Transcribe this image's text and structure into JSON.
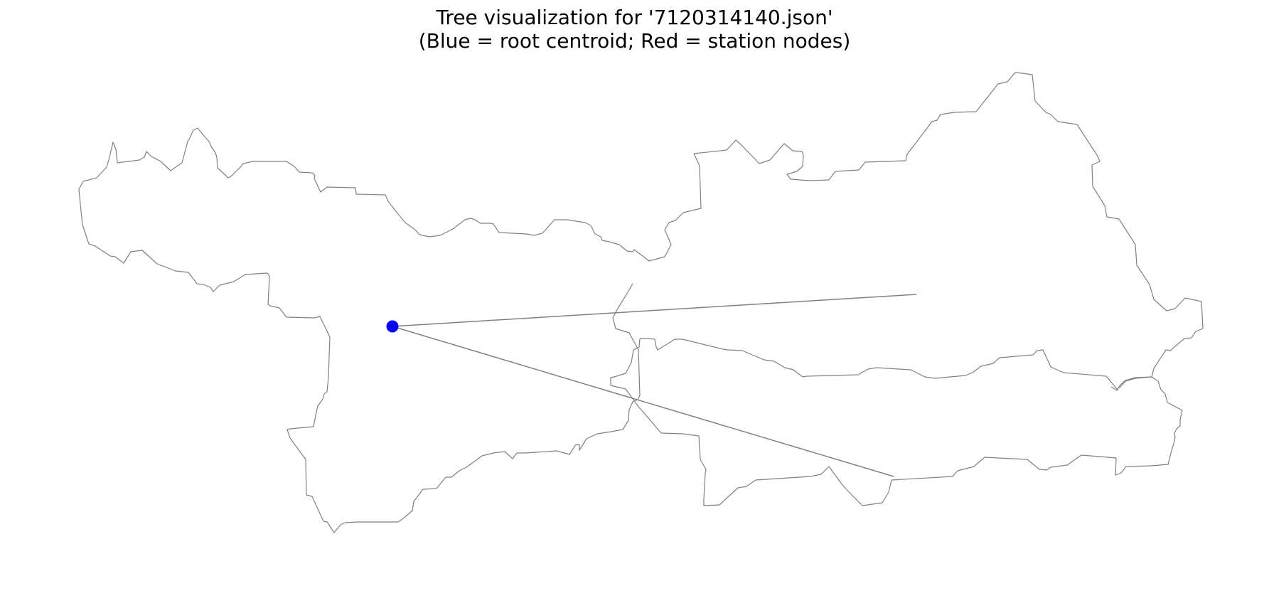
{
  "title": {
    "line1": "Tree visualization for '7120314140.json'",
    "line2": "(Blue = root centroid; Red = station nodes)"
  },
  "colors": {
    "background": "#ffffff",
    "boundary": "#808080",
    "edge": "#808080",
    "root": "#0000ff",
    "station": "#ff0000"
  },
  "diagram": {
    "root_node": {
      "label": "root centroid",
      "color": "blue"
    },
    "station_nodes": [],
    "edges": [
      {
        "from": "root",
        "to": "east-branch"
      },
      {
        "from": "root",
        "to": "south-east-branch"
      }
    ]
  }
}
